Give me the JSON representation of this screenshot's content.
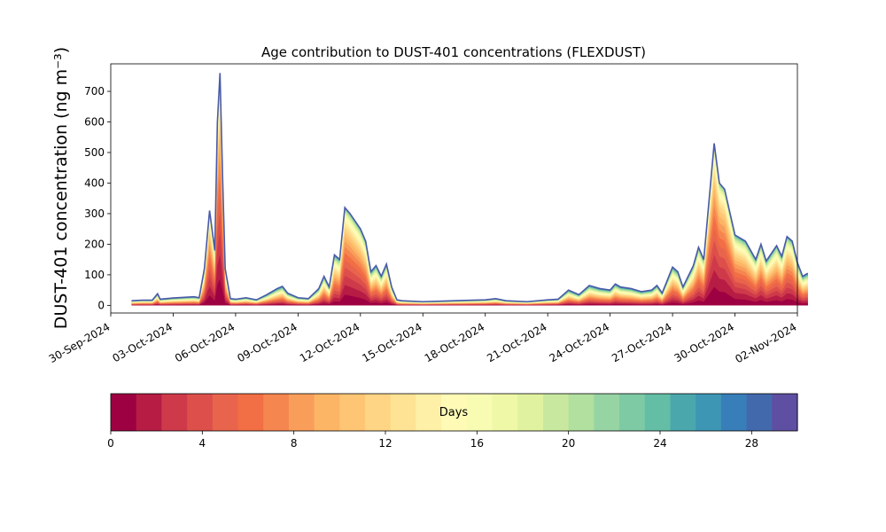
{
  "chart_data": {
    "type": "area",
    "title": "Age contribution to DUST-401 concentrations (FLEXDUST)",
    "ylabel": "DUST-401 concentration (ng m⁻³)",
    "xlabel": "",
    "x_start": "2024-10-01",
    "x_end": "2024-11-01",
    "xlim": [
      "2024-09-30",
      "2024-11-02"
    ],
    "ylim": [
      -25,
      790
    ],
    "yticks": [
      0,
      100,
      200,
      300,
      400,
      500,
      600,
      700
    ],
    "xticks": [
      "30-Sep-2024",
      "03-Oct-2024",
      "06-Oct-2024",
      "09-Oct-2024",
      "12-Oct-2024",
      "15-Oct-2024",
      "18-Oct-2024",
      "21-Oct-2024",
      "24-Oct-2024",
      "27-Oct-2024",
      "30-Oct-2024",
      "02-Nov-2024"
    ],
    "total_series": [
      [
        "2024-10-01T00:00",
        15
      ],
      [
        "2024-10-01T12:00",
        17
      ],
      [
        "2024-10-02T00:00",
        17
      ],
      [
        "2024-10-02T06:00",
        38
      ],
      [
        "2024-10-02T09:00",
        20
      ],
      [
        "2024-10-03T00:00",
        24
      ],
      [
        "2024-10-04T00:00",
        28
      ],
      [
        "2024-10-04T06:00",
        25
      ],
      [
        "2024-10-04T12:00",
        120
      ],
      [
        "2024-10-04T18:00",
        310
      ],
      [
        "2024-10-05T00:00",
        180
      ],
      [
        "2024-10-05T03:00",
        600
      ],
      [
        "2024-10-05T06:00",
        760
      ],
      [
        "2024-10-05T09:00",
        420
      ],
      [
        "2024-10-05T12:00",
        120
      ],
      [
        "2024-10-05T18:00",
        22
      ],
      [
        "2024-10-06T00:00",
        20
      ],
      [
        "2024-10-06T12:00",
        25
      ],
      [
        "2024-10-07T00:00",
        18
      ],
      [
        "2024-10-07T12:00",
        35
      ],
      [
        "2024-10-08T00:00",
        55
      ],
      [
        "2024-10-08T06:00",
        62
      ],
      [
        "2024-10-08T12:00",
        40
      ],
      [
        "2024-10-09T00:00",
        25
      ],
      [
        "2024-10-09T12:00",
        22
      ],
      [
        "2024-10-10T00:00",
        55
      ],
      [
        "2024-10-10T06:00",
        95
      ],
      [
        "2024-10-10T12:00",
        60
      ],
      [
        "2024-10-10T18:00",
        165
      ],
      [
        "2024-10-11T00:00",
        150
      ],
      [
        "2024-10-11T06:00",
        320
      ],
      [
        "2024-10-11T12:00",
        300
      ],
      [
        "2024-10-12T00:00",
        250
      ],
      [
        "2024-10-12T06:00",
        210
      ],
      [
        "2024-10-12T12:00",
        110
      ],
      [
        "2024-10-12T18:00",
        130
      ],
      [
        "2024-10-13T00:00",
        95
      ],
      [
        "2024-10-13T06:00",
        135
      ],
      [
        "2024-10-13T12:00",
        60
      ],
      [
        "2024-10-13T18:00",
        18
      ],
      [
        "2024-10-14T00:00",
        15
      ],
      [
        "2024-10-15T00:00",
        12
      ],
      [
        "2024-10-16T00:00",
        14
      ],
      [
        "2024-10-17T00:00",
        16
      ],
      [
        "2024-10-18T00:00",
        18
      ],
      [
        "2024-10-18T12:00",
        22
      ],
      [
        "2024-10-19T00:00",
        15
      ],
      [
        "2024-10-20T00:00",
        12
      ],
      [
        "2024-10-21T00:00",
        18
      ],
      [
        "2024-10-21T12:00",
        20
      ],
      [
        "2024-10-22T00:00",
        50
      ],
      [
        "2024-10-22T12:00",
        35
      ],
      [
        "2024-10-23T00:00",
        65
      ],
      [
        "2024-10-23T12:00",
        55
      ],
      [
        "2024-10-24T00:00",
        50
      ],
      [
        "2024-10-24T06:00",
        70
      ],
      [
        "2024-10-24T12:00",
        60
      ],
      [
        "2024-10-25T00:00",
        55
      ],
      [
        "2024-10-25T12:00",
        45
      ],
      [
        "2024-10-26T00:00",
        50
      ],
      [
        "2024-10-26T06:00",
        65
      ],
      [
        "2024-10-26T12:00",
        40
      ],
      [
        "2024-10-27T00:00",
        125
      ],
      [
        "2024-10-27T06:00",
        110
      ],
      [
        "2024-10-27T12:00",
        60
      ],
      [
        "2024-10-28T00:00",
        130
      ],
      [
        "2024-10-28T06:00",
        190
      ],
      [
        "2024-10-28T12:00",
        150
      ],
      [
        "2024-10-29T00:00",
        530
      ],
      [
        "2024-10-29T06:00",
        400
      ],
      [
        "2024-10-29T12:00",
        380
      ],
      [
        "2024-10-30T00:00",
        230
      ],
      [
        "2024-10-30T12:00",
        210
      ],
      [
        "2024-10-31T00:00",
        150
      ],
      [
        "2024-10-31T06:00",
        200
      ],
      [
        "2024-10-31T12:00",
        145
      ],
      [
        "2024-11-01T00:00",
        195
      ],
      [
        "2024-11-01T06:00",
        160
      ],
      [
        "2024-11-01T12:00",
        225
      ],
      [
        "2024-11-01T18:00",
        210
      ],
      [
        "2024-11-02T00:00",
        140
      ],
      [
        "2024-11-02T06:00",
        95
      ],
      [
        "2024-11-02T12:00",
        105
      ]
    ],
    "colorbar": {
      "label": "Days",
      "range": [
        0,
        30
      ],
      "ticks": [
        0,
        4,
        8,
        12,
        16,
        20,
        24,
        28
      ],
      "colors": [
        "#9e0142",
        "#b71c44",
        "#cf3a4b",
        "#dd4f4a",
        "#e9644c",
        "#f26e44",
        "#f68650",
        "#f99e5a",
        "#fcb565",
        "#fdc574",
        "#fed485",
        "#fee395",
        "#fff0a8",
        "#fffbb6",
        "#f8fcb3",
        "#eef8a7",
        "#e0f29f",
        "#c9e89f",
        "#b1e09f",
        "#97d4a4",
        "#7dcaa4",
        "#64bea6",
        "#4aa8ad",
        "#3e96b5",
        "#387eb8",
        "#4369ad",
        "#5e4fa2"
      ]
    }
  }
}
